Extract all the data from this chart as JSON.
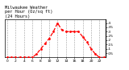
{
  "title": "Milwaukee Weather   per Hour (Oz/sq ft)   (24 Hours)",
  "title_line1": "Milwaukee Weather",
  "title_line2": "per Hour (Oz/sq ft)",
  "title_line3": "(24 Hours)",
  "hours": [
    0,
    1,
    2,
    3,
    4,
    5,
    6,
    7,
    8,
    9,
    10,
    11,
    12,
    13,
    14,
    15,
    16,
    17,
    18,
    19,
    20,
    21,
    22,
    23
  ],
  "values": [
    0,
    0,
    0,
    0,
    0,
    0,
    0.0,
    0.04,
    0.1,
    0.16,
    0.22,
    0.3,
    0.4,
    0.32,
    0.3,
    0.3,
    0.3,
    0.3,
    0.24,
    0.18,
    0.1,
    0.04,
    0.0,
    0.0
  ],
  "line_color": "#ff0000",
  "bg_color": "#ffffff",
  "grid_color": "#888888",
  "ylim": [
    0,
    0.44
  ],
  "ytick_vals": [
    0.05,
    0.1,
    0.15,
    0.2,
    0.25,
    0.3,
    0.35,
    0.4
  ],
  "ytick_labels": [
    ".05",
    ".1",
    ".15",
    ".2",
    ".25",
    ".3",
    ".35",
    ".4"
  ],
  "xtick_vals": [
    0,
    2,
    4,
    6,
    8,
    10,
    12,
    14,
    16,
    18,
    20,
    22
  ],
  "xtick_labels": [
    "0",
    "2",
    "4",
    "6",
    "8",
    "10",
    "12",
    "14",
    "16",
    "18",
    "20",
    "22"
  ],
  "title_fontsize": 3.8,
  "tick_fontsize": 3.2,
  "linewidth": 0.9,
  "markersize": 2.0
}
